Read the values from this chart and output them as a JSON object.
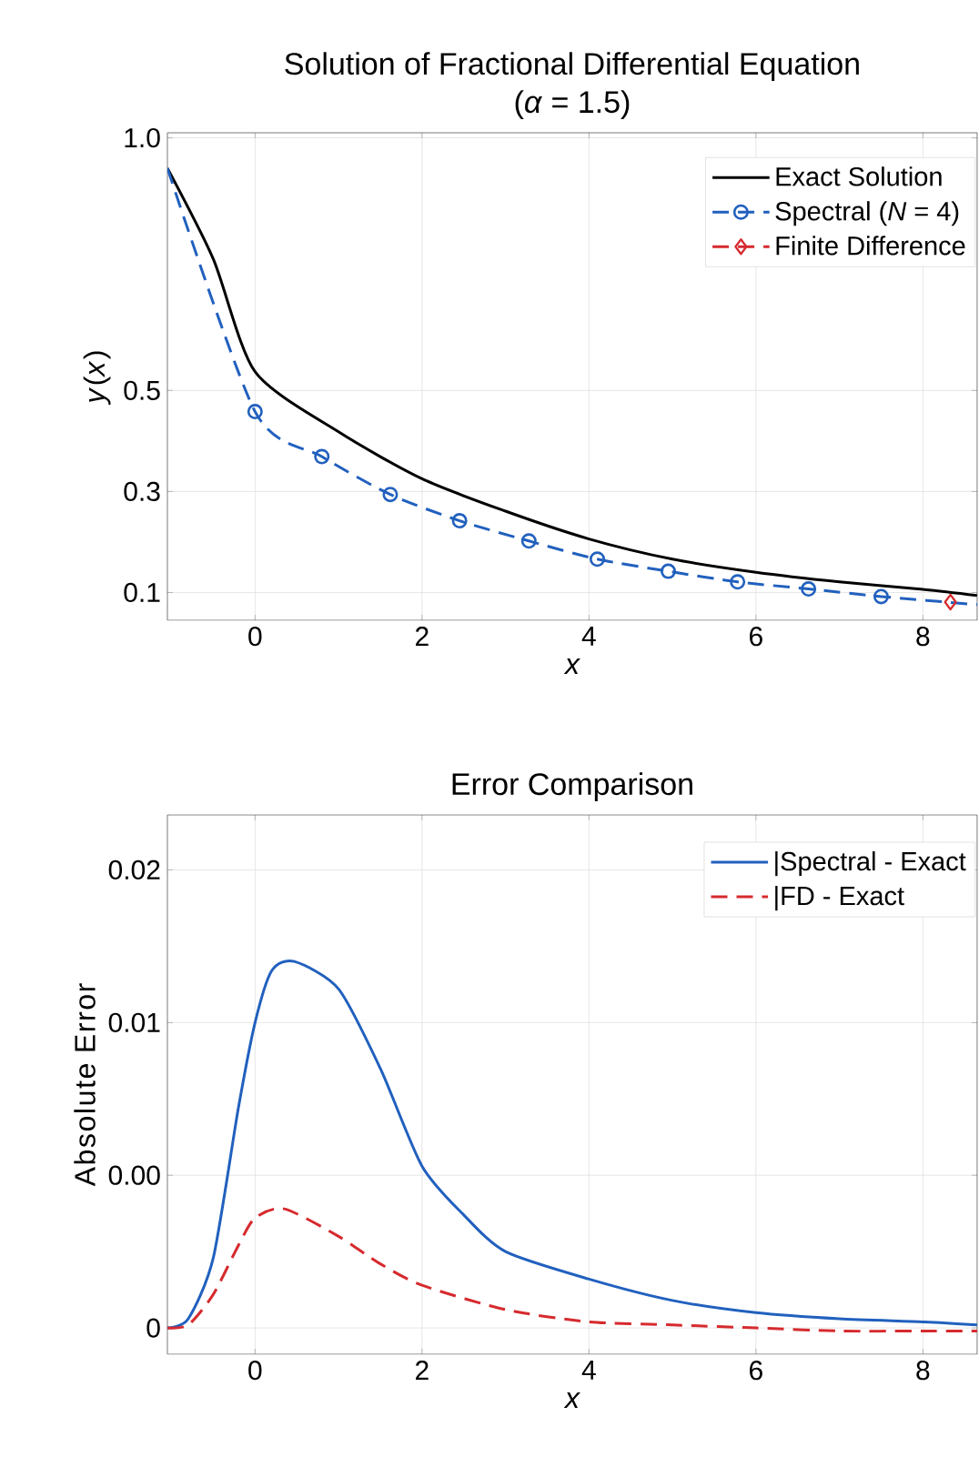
{
  "chart_data": [
    {
      "type": "line",
      "title": "Solution of Fractional Differential Equation",
      "subtitle": "(*α* = 1.5)",
      "xlabel": "x",
      "ylabel": "*y*(*x*)",
      "xlim": [
        -1.05,
        8.65
      ],
      "xticks": [
        0,
        2,
        4,
        6,
        8
      ],
      "ylim": [
        0.045,
        1.01
      ],
      "yticks": [
        0.1,
        0.3,
        0.5,
        {
          "value": 1,
          "label": "1.0"
        }
      ],
      "grid": true,
      "legend": "top right",
      "series": [
        {
          "name": "Exact Solution",
          "color": "#000000",
          "line_style": "solid",
          "marker": "none",
          "x": [
            -1.05,
            -0.5,
            0,
            1,
            2,
            3,
            4,
            5,
            6,
            7,
            8,
            8.65
          ],
          "values": [
            0.94,
            0.76,
            0.537,
            0.418,
            0.325,
            0.261,
            0.206,
            0.166,
            0.14,
            0.121,
            0.106,
            0.094
          ]
        },
        {
          "name": "Spectral (*N* = 4)",
          "color": "#2160be",
          "line_style": "dashed",
          "marker": "circle",
          "x": [
            -1.05,
            0,
            0.8,
            1.62,
            2.45,
            3.28,
            4.1,
            4.95,
            5.78,
            6.63,
            7.5,
            8.65
          ],
          "values": [
            0.94,
            0.458,
            0.369,
            0.294,
            0.242,
            0.202,
            0.166,
            0.142,
            0.121,
            0.107,
            0.092,
            0.076
          ]
        },
        {
          "name": "Finite Difference",
          "color": "#d62a2e",
          "line_style": "dashed",
          "marker": "diamond",
          "x": [
            8.33
          ],
          "values": [
            0.081
          ]
        }
      ]
    },
    {
      "type": "line",
      "title": "Error Comparison",
      "xlabel": "x",
      "ylabel": "Absolute Error",
      "xlim": [
        -1.05,
        8.65
      ],
      "xticks": [
        0,
        2,
        4,
        6,
        8
      ],
      "ylim": [
        -0.00086,
        0.0168
      ],
      "yticks": [
        0,
        {
          "value": 0.005,
          "label": "0.00"
        },
        0.01,
        {
          "value": 0.015,
          "label": "0.02"
        }
      ],
      "grid": true,
      "legend": "top right",
      "series": [
        {
          "name": "|Spectral - Exact",
          "color": "#2160be",
          "line_style": "solid",
          "marker": "none",
          "x": [
            -1.05,
            -0.8,
            -0.5,
            -0.2,
            0,
            0.2,
            0.47,
            1,
            1.5,
            2,
            2.5,
            3,
            4,
            5,
            6,
            7,
            8,
            8.65
          ],
          "values": [
            0,
            0.0003,
            0.0023,
            0.0072,
            0.01,
            0.0117,
            0.012,
            0.0111,
            0.0085,
            0.0053,
            0.0037,
            0.0025,
            0.0016,
            0.0009,
            0.0005,
            0.0003,
            0.0002,
            0.0001
          ]
        },
        {
          "name": "|FD - Exact",
          "color": "#d62a2e",
          "line_style": "dashed",
          "marker": "none",
          "x": [
            -1.05,
            -0.8,
            -0.5,
            -0.2,
            0,
            0.35,
            1,
            1.5,
            2,
            3,
            4,
            5,
            6,
            7,
            8,
            8.65
          ],
          "values": [
            0,
            0.0001,
            0.0011,
            0.0027,
            0.0036,
            0.0039,
            0.003,
            0.0021,
            0.0014,
            0.0006,
            0.0002,
            0.0001,
            0,
            -0.0001,
            -0.0001,
            -0.0001
          ]
        }
      ]
    }
  ]
}
